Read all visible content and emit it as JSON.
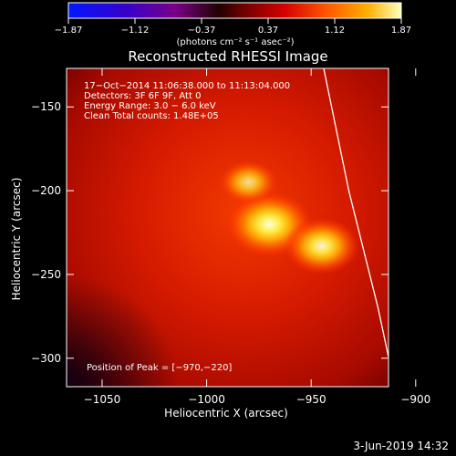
{
  "chart_data": {
    "type": "heatmap",
    "title": "Reconstructed RHESSI Image",
    "xlabel": "Heliocentric X (arcsec)",
    "ylabel": "Heliocentric Y (arcsec)",
    "xlim": [
      -1067,
      -913
    ],
    "ylim": [
      -317,
      -127
    ],
    "x_ticks": [
      -1050,
      -1000,
      -950,
      -900
    ],
    "y_ticks": [
      -150,
      -200,
      -250,
      -300
    ],
    "x_tick_labels": [
      "−1050",
      "−1000",
      "−950",
      "−900"
    ],
    "y_tick_labels": [
      "−150",
      "−200",
      "−250",
      "−300"
    ],
    "colorbar": {
      "range": [
        -1.87,
        1.87
      ],
      "ticks": [
        "−1.87",
        "−1.12",
        "−0.37",
        "0.37",
        "1.12",
        "1.87"
      ],
      "unit_label": "(photons cm⁻² s⁻¹ asec⁻²)"
    },
    "info_lines": [
      "17−Oct−2014 11:06:38.000 to 11:13:04.000",
      "Detectors: 3F 6F 9F, Att 0",
      "Energy Range: 3.0 − 6.0 keV",
      "Clean    Total counts: 1.48E+05"
    ],
    "peak_text": "Position of Peak = [−970,−220]",
    "sources": [
      {
        "x": -970,
        "y": -220,
        "intensity": 1.87
      },
      {
        "x": -945,
        "y": -233,
        "intensity": 1.5
      },
      {
        "x": -980,
        "y": -195,
        "intensity": 1.0
      }
    ],
    "limb_curve": [
      [
        -944,
        -127
      ],
      [
        -932,
        -200
      ],
      [
        -918,
        -270
      ],
      [
        -910,
        -317
      ]
    ],
    "colors": {
      "background": "#000000",
      "map_low": "#8a0000",
      "map_mid": "#ff2a00",
      "map_high": "#ffffe0",
      "limb": "#ffffff"
    }
  },
  "footer": {
    "date": "3-Jun-2019 14:32"
  }
}
